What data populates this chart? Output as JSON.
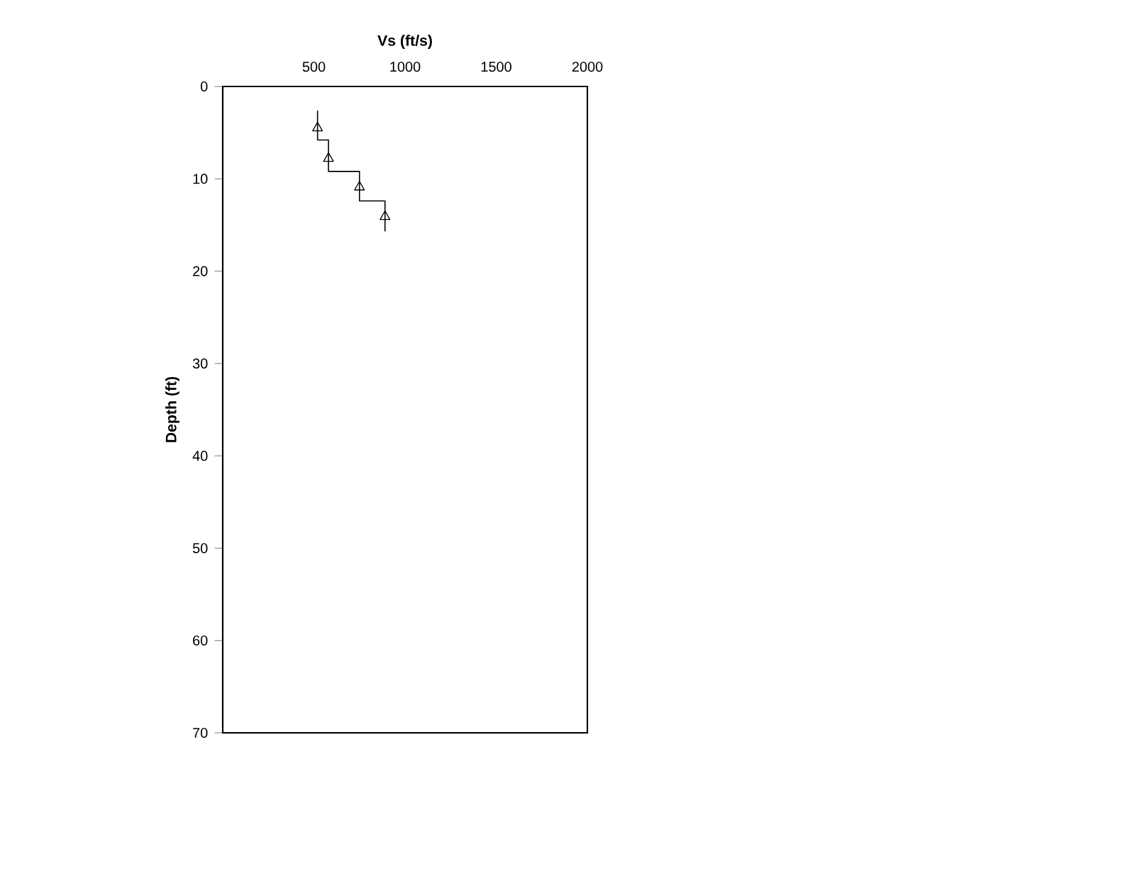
{
  "chart_data": {
    "type": "line",
    "xlabel": "Vs (ft/s)",
    "ylabel": "Depth (ft)",
    "xlim": [
      0,
      2000
    ],
    "xticks": [
      500,
      1000,
      1500,
      2000
    ],
    "ylim": [
      70,
      0
    ],
    "yticks": [
      0,
      10,
      20,
      30,
      40,
      50,
      60,
      70
    ],
    "series": [
      {
        "color": "#000000",
        "marker": "none",
        "x": [
          520,
          520,
          580,
          580,
          750,
          750,
          890,
          890
        ],
        "values": [
          2.6,
          5.8,
          5.8,
          9.2,
          9.2,
          12.4,
          12.4,
          15.7
        ]
      },
      {
        "type": "scatter",
        "color": "#000000",
        "marker": "triangle",
        "x": [
          520,
          580,
          750,
          890
        ],
        "values": [
          4.5,
          7.8,
          10.9,
          14.1
        ]
      }
    ]
  }
}
